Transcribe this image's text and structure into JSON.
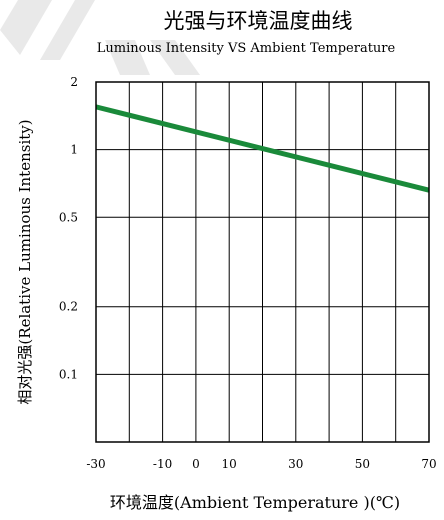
{
  "chart_data": {
    "type": "line",
    "title": "光强与环境温度曲线",
    "subtitle": "Luminous Intensity VS Ambient Temperature",
    "xlabel": "环境温度(Ambient Temperature )(℃)",
    "ylabel": "相对光强(Relative Luminous Intensity)",
    "x_ticks": [
      "-30",
      "-10",
      "0",
      "10",
      "30",
      "50",
      "70"
    ],
    "y_ticks": [
      "2",
      "1",
      "0.5",
      "0.2",
      "0.1"
    ],
    "xlim": [
      -30,
      70
    ],
    "y_scale": "log",
    "ylim": [
      0.05,
      2
    ],
    "grid": true,
    "series": [
      {
        "x": [
          -30,
          70
        ],
        "y": [
          1.55,
          0.66
        ],
        "color": "#1a8a3a"
      }
    ]
  }
}
